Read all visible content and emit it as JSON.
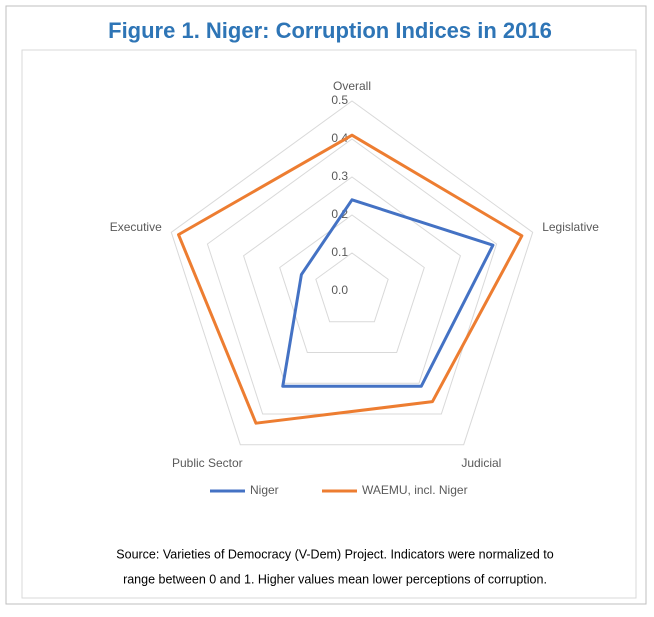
{
  "chart_data": {
    "type": "radar",
    "title": "Figure 1. Niger: Corruption Indices in 2016",
    "categories": [
      "Overall",
      "Legislative",
      "Judicial",
      "Public Sector",
      "Executive"
    ],
    "series": [
      {
        "name": "Niger",
        "color": "#4472c4",
        "values": [
          0.24,
          0.39,
          0.31,
          0.31,
          0.14
        ]
      },
      {
        "name": "WAEMU, incl. Niger",
        "color": "#ed7d31",
        "values": [
          0.41,
          0.47,
          0.36,
          0.43,
          0.48
        ]
      }
    ],
    "ylim": [
      0,
      0.5
    ],
    "yticks": [
      {
        "value": 0,
        "label": "0.0"
      },
      0.1,
      0.2,
      0.3,
      0.4,
      0.5
    ],
    "grid": true,
    "legend": "bottom",
    "source": [
      "Source: Varieties of Democracy (V-Dem)  Project. Indicators were normalized to",
      "range between  0 and 1. Higher values mean lower perceptions of corruption."
    ]
  }
}
